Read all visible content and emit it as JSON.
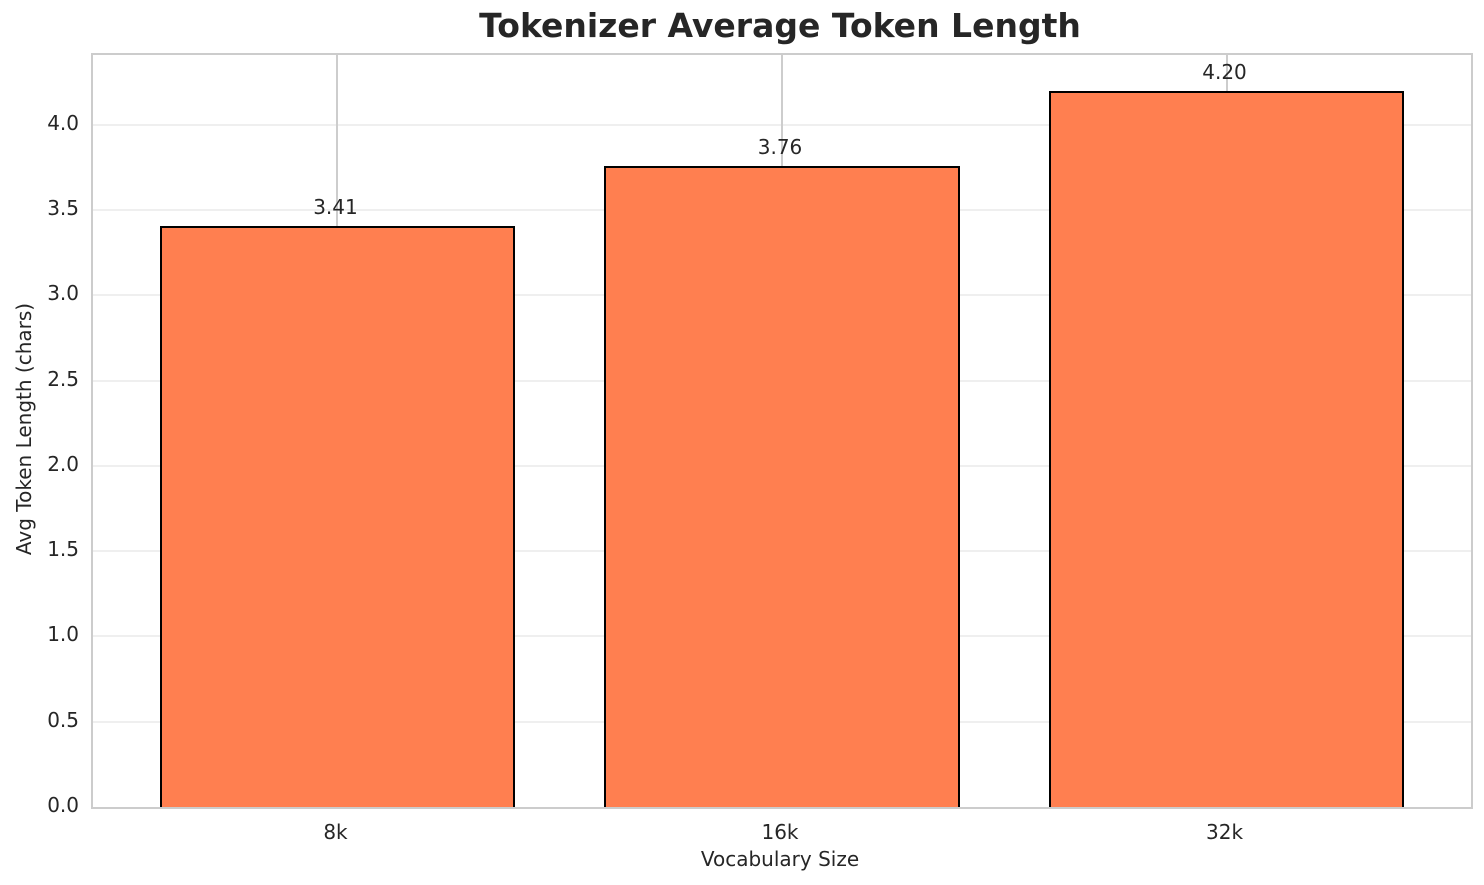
{
  "chart_data": {
    "type": "bar",
    "title": "Tokenizer Average Token Length",
    "xlabel": "Vocabulary Size",
    "ylabel": "Avg Token Length (chars)",
    "categories": [
      "8k",
      "16k",
      "32k"
    ],
    "values": [
      3.41,
      3.76,
      4.2
    ],
    "bar_labels": [
      "3.41",
      "3.76",
      "4.20"
    ],
    "yticks": [
      0.0,
      0.5,
      1.0,
      1.5,
      2.0,
      2.5,
      3.0,
      3.5,
      4.0
    ],
    "ytick_labels": [
      "0.0",
      "0.5",
      "1.0",
      "1.5",
      "2.0",
      "2.5",
      "3.0",
      "3.5",
      "4.0"
    ],
    "ylim": [
      0,
      4.41
    ],
    "bar_width_fraction": 0.8,
    "grid": "both",
    "legend": "none",
    "colors": {
      "bar_fill": "#FF7F50",
      "bar_edge": "#000000",
      "grid_horizontal": "#efefef",
      "grid_vertical": "#cdcdcd",
      "spine": "#cccccc",
      "text": "#262626",
      "background": "#ffffff"
    }
  }
}
